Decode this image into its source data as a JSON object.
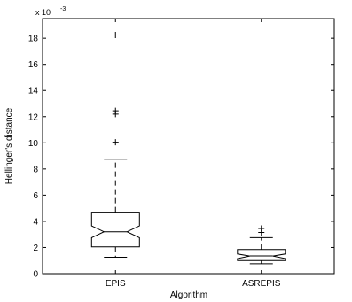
{
  "chart_data": {
    "type": "boxplot",
    "xlabel": "Algorithm",
    "ylabel": "Hellinger's distance",
    "y_scale_label": "x 10",
    "y_scale_exponent": "-3",
    "y_multiplier": 0.001,
    "ylim": [
      0,
      19.5
    ],
    "yticks": [
      "0",
      "2",
      "4",
      "6",
      "8",
      "10",
      "12",
      "14",
      "16",
      "18"
    ],
    "notched": true,
    "grid": false,
    "categories": [
      "EPIS",
      "ASREPIS"
    ],
    "boxes": [
      {
        "name": "EPIS",
        "whisker_low": 1.25,
        "q1": 2.05,
        "notch_low": 2.75,
        "median": 3.2,
        "notch_high": 3.65,
        "q3": 4.7,
        "whisker_high": 8.75,
        "outliers": [
          10.05,
          12.2,
          12.45,
          18.25
        ]
      },
      {
        "name": "ASREPIS",
        "whisker_low": 0.75,
        "q1": 1.0,
        "notch_low": 1.15,
        "median": 1.35,
        "notch_high": 1.5,
        "q3": 1.85,
        "whisker_high": 2.75,
        "outliers": [
          3.15,
          3.45
        ]
      }
    ]
  }
}
